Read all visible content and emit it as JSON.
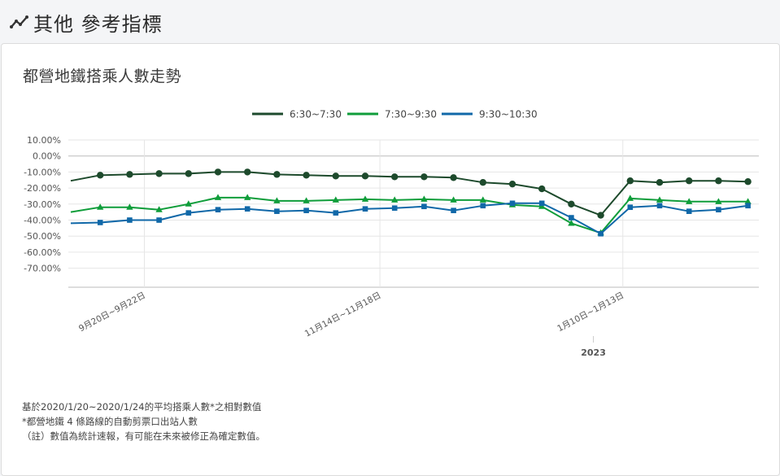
{
  "header": {
    "title": "其他 參考指標",
    "icon": "trend-line-icon"
  },
  "card": {
    "title": "都營地鐵搭乘人數走勢"
  },
  "notes": [
    "基於2020/1/20~2020/1/24的平均搭乘人數*之相對數值",
    "*都營地鐵 4 條路線的自動剪票口出站人數",
    "（註）數值為統計速報，有可能在未來被修正為確定數值。"
  ],
  "chart_data": {
    "type": "line",
    "title": "",
    "xlabel": "",
    "ylabel": "",
    "ylim": [
      -70,
      10
    ],
    "y_ticks": [
      "10.00%",
      "0.00%",
      "-10.00%",
      "-20.00%",
      "-30.00%",
      "-40.00%",
      "-50.00%",
      "-60.00%",
      "-70.00%"
    ],
    "x_tick_labels": [
      "9月20日~9月22日",
      "11月14日~11月18日",
      "1月10日~1月13日"
    ],
    "x_tick_index": [
      2.5,
      10.5,
      18.75
    ],
    "year_label": "2023",
    "year_label_index": 17.75,
    "grid": true,
    "legend_position": "top",
    "series": [
      {
        "name": "6:30~7:30",
        "color": "#1d4a2c",
        "marker": "circle",
        "values": [
          -15.5,
          -12.0,
          -11.5,
          -11.0,
          -11.0,
          -10.0,
          -10.0,
          -11.5,
          -12.0,
          -12.5,
          -12.5,
          -13.0,
          -13.0,
          -13.5,
          -16.5,
          -17.5,
          -20.5,
          -30.0,
          -37.0,
          -15.5,
          -16.5,
          -15.5,
          -15.5,
          -16.0
        ]
      },
      {
        "name": "7:30~9:30",
        "color": "#0f9d3a",
        "marker": "triangle",
        "values": [
          -35.0,
          -32.0,
          -32.0,
          -33.5,
          -30.0,
          -26.0,
          -26.0,
          -28.0,
          -28.0,
          -27.5,
          -27.0,
          -27.5,
          -27.0,
          -27.5,
          -27.5,
          -30.5,
          -31.5,
          -42.0,
          -48.0,
          -26.5,
          -27.5,
          -28.5,
          -28.5,
          -28.5
        ]
      },
      {
        "name": "9:30~10:30",
        "color": "#1068a8",
        "marker": "square",
        "values": [
          -42.0,
          -41.5,
          -40.0,
          -40.0,
          -35.5,
          -33.5,
          -33.0,
          -34.5,
          -34.0,
          -35.5,
          -33.0,
          -32.5,
          -31.5,
          -34.0,
          -31.0,
          -29.5,
          -29.5,
          -38.5,
          -48.5,
          -32.0,
          -31.0,
          -34.5,
          -33.5,
          -31.0
        ]
      }
    ]
  }
}
